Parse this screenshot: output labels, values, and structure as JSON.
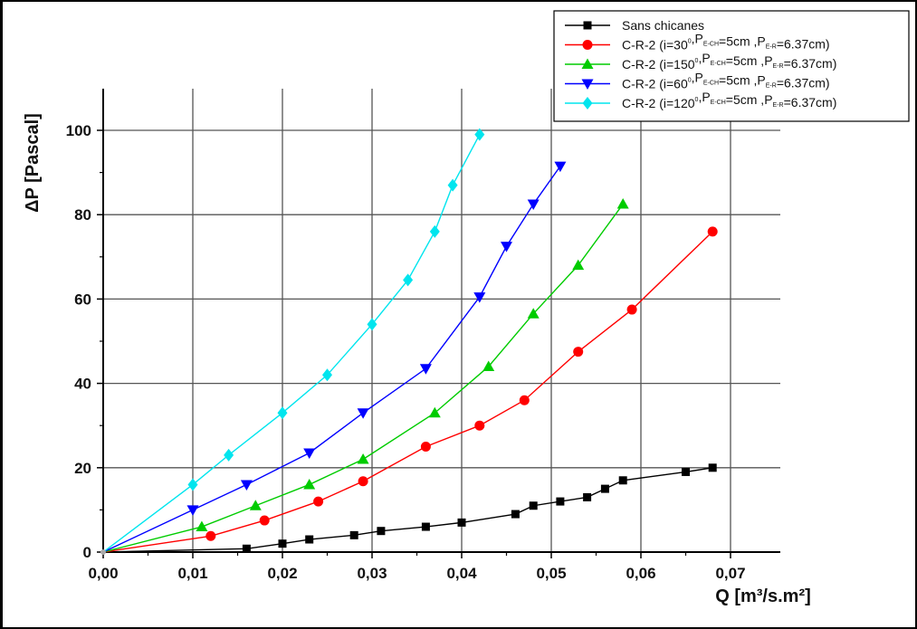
{
  "chart_data": {
    "type": "line",
    "xlabel": "Q [m³/s.m²]",
    "ylabel": "ΔP [Pascal]",
    "xlim": [
      0,
      0.075
    ],
    "ylim": [
      0,
      110
    ],
    "x_ticks": [
      0,
      0.01,
      0.02,
      0.03,
      0.04,
      0.05,
      0.06,
      0.07
    ],
    "x_tick_labels": [
      "0,00",
      "0,01",
      "0,02",
      "0,03",
      "0,04",
      "0,05",
      "0,06",
      "0,07"
    ],
    "y_ticks": [
      0,
      20,
      40,
      60,
      80,
      100
    ],
    "y_tick_labels": [
      "0",
      "20",
      "40",
      "60",
      "80",
      "100"
    ],
    "grid": true,
    "legend_position": "top-right",
    "series": [
      {
        "legend": {
          "text": "Sans chicanes"
        },
        "color": "#000000",
        "marker": "square",
        "x": [
          0,
          0.016,
          0.02,
          0.023,
          0.028,
          0.031,
          0.036,
          0.04,
          0.046,
          0.048,
          0.051,
          0.054,
          0.056,
          0.058,
          0.065,
          0.068
        ],
        "y": [
          0,
          0.8,
          2,
          3,
          4,
          5,
          6,
          7,
          9,
          11,
          12,
          13,
          15,
          17,
          19,
          20
        ]
      },
      {
        "legend": {
          "pre": "C-R-2 (i=30",
          "sup": "0",
          "a": ",P",
          "s1": "E-CH",
          "b": "=5cm ,P",
          "s2": "E-R",
          "c": "=6.37cm)"
        },
        "color": "#ff0000",
        "marker": "circle",
        "x": [
          0,
          0.012,
          0.018,
          0.024,
          0.029,
          0.036,
          0.042,
          0.047,
          0.053,
          0.059,
          0.068
        ],
        "y": [
          0,
          3.8,
          7.5,
          12,
          16.8,
          25,
          30,
          36,
          47.5,
          57.5,
          76
        ]
      },
      {
        "legend": {
          "pre": "C-R-2 (i=150",
          "sup": "0",
          "a": ",P",
          "s1": "E-CH",
          "b": "=5cm ,P",
          "s2": "E-R",
          "c": "=6.37cm)"
        },
        "color": "#00cc00",
        "marker": "triangle-up",
        "x": [
          0,
          0.011,
          0.017,
          0.023,
          0.029,
          0.037,
          0.043,
          0.048,
          0.053,
          0.058
        ],
        "y": [
          0,
          6,
          11,
          16,
          22,
          33,
          44,
          56.5,
          68,
          82.5
        ]
      },
      {
        "legend": {
          "pre": "C-R-2 (i=60",
          "sup": "0",
          "a": ",P",
          "s1": "E-CH",
          "b": "=5cm ,P",
          "s2": "E-R",
          "c": "=6.37cm)"
        },
        "color": "#0000ff",
        "marker": "triangle-down",
        "x": [
          0,
          0.01,
          0.016,
          0.023,
          0.029,
          0.036,
          0.042,
          0.045,
          0.048,
          0.051
        ],
        "y": [
          0,
          10,
          16,
          23.5,
          33,
          43.5,
          60.5,
          72.5,
          82.5,
          91.5
        ]
      },
      {
        "legend": {
          "pre": "C-R-2 (i=120",
          "sup": "0",
          "a": ",P",
          "s1": "E-CH",
          "b": "=5cm ,P",
          "s2": "E-R",
          "c": "=6.37cm)"
        },
        "color": "#00e5ee",
        "marker": "diamond",
        "x": [
          0,
          0.01,
          0.014,
          0.02,
          0.025,
          0.03,
          0.034,
          0.037,
          0.039,
          0.042
        ],
        "y": [
          0,
          16,
          23,
          33,
          42,
          54,
          64.5,
          76,
          87,
          99
        ]
      }
    ]
  }
}
